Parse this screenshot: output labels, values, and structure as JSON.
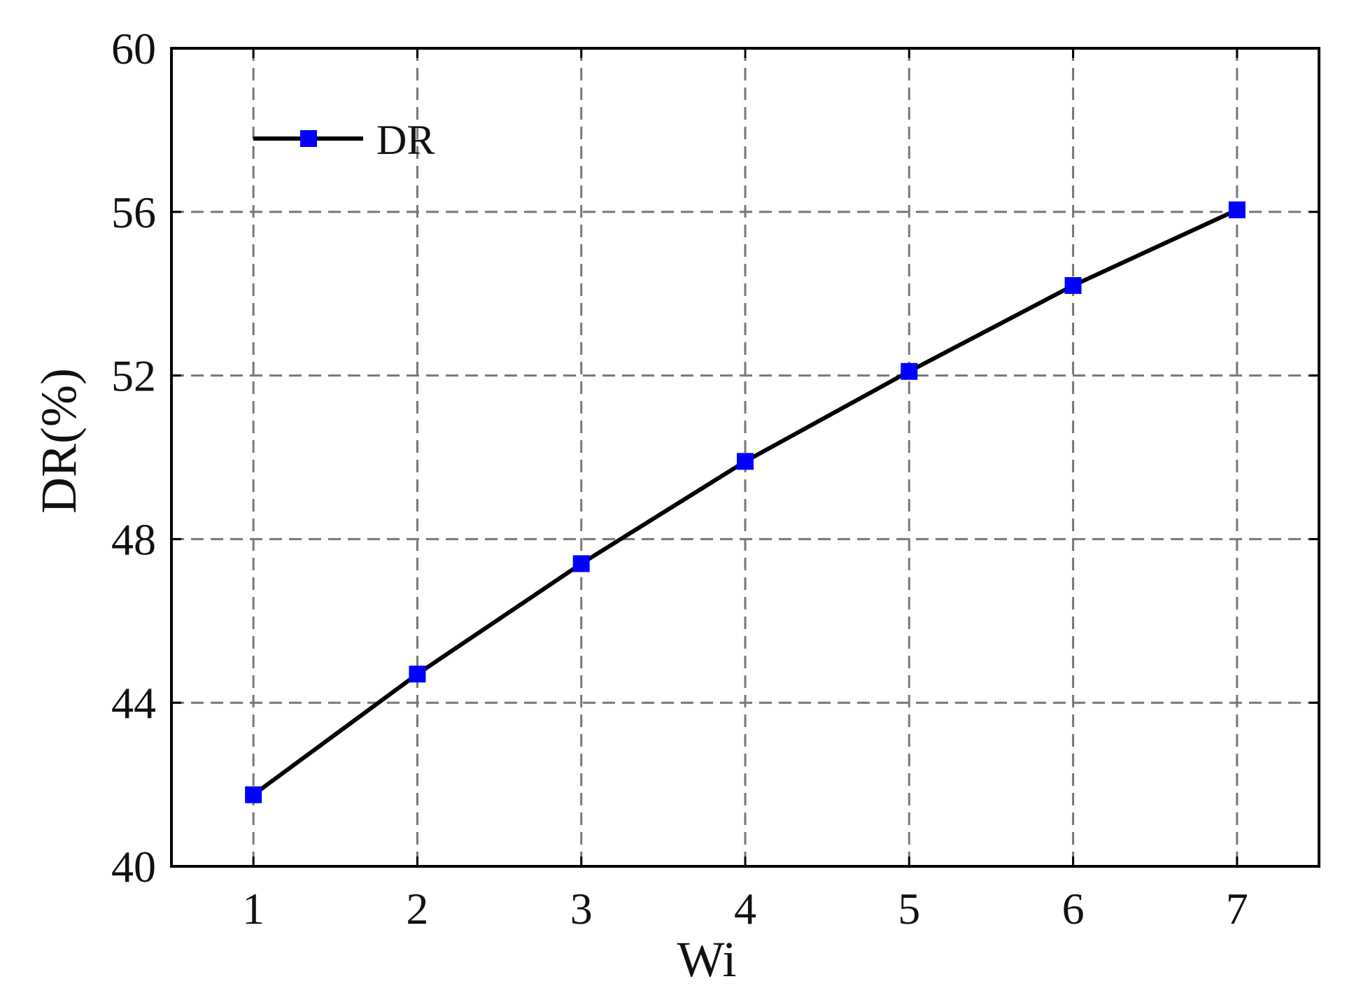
{
  "chart_data": {
    "type": "line",
    "xlabel": "Wi",
    "ylabel": "DR(%)",
    "x": [
      1,
      2,
      3,
      4,
      5,
      6,
      7
    ],
    "series": [
      {
        "name": "DR",
        "color": "#0000ff",
        "line_color": "#000000",
        "values": [
          41.75,
          44.7,
          47.4,
          49.9,
          52.1,
          54.2,
          56.05
        ]
      }
    ],
    "xlim": [
      0.5,
      7.5
    ],
    "xticks": [
      1,
      2,
      3,
      4,
      5,
      6,
      7
    ],
    "ylim": [
      40,
      60
    ],
    "yticks": [
      40,
      44,
      48,
      52,
      56,
      60
    ],
    "grid": true,
    "legend": "upper-left"
  }
}
